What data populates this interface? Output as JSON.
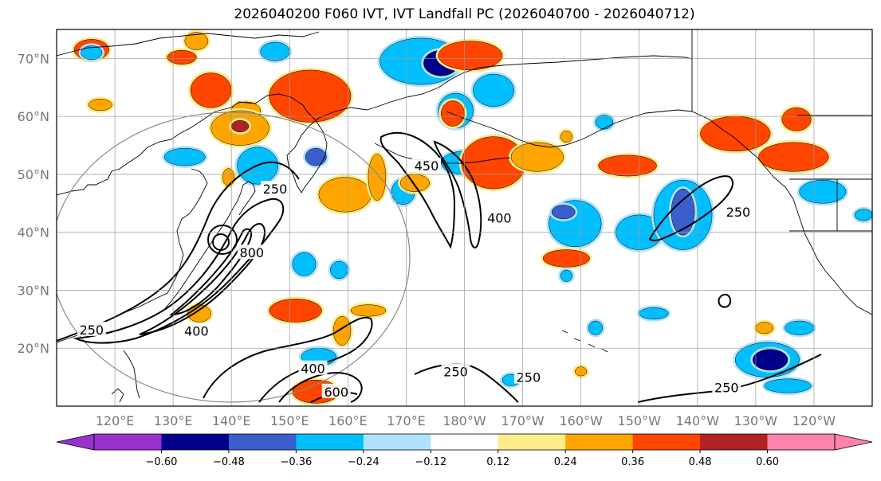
{
  "chart_data": {
    "type": "contour-map",
    "title": "2026040200 F060 IVT, IVT Landfall PC (2026040700 - 2026040712)",
    "map": {
      "lon_range": [
        110,
        250
      ],
      "lat_range": [
        10,
        75
      ],
      "lat_ticks": [
        {
          "lat": 70,
          "label": "70°N"
        },
        {
          "lat": 60,
          "label": "60°N"
        },
        {
          "lat": 50,
          "label": "50°N"
        },
        {
          "lat": 40,
          "label": "40°N"
        },
        {
          "lat": 30,
          "label": "30°N"
        },
        {
          "lat": 20,
          "label": "20°N"
        }
      ],
      "lon_ticks": [
        {
          "lon": 120,
          "label": "120°E"
        },
        {
          "lon": 130,
          "label": "130°E"
        },
        {
          "lon": 140,
          "label": "140°E"
        },
        {
          "lon": 150,
          "label": "150°E"
        },
        {
          "lon": 160,
          "label": "160°E"
        },
        {
          "lon": 170,
          "label": "170°E"
        },
        {
          "lon": 180,
          "label": "180°W"
        },
        {
          "lon": 190,
          "label": "170°W"
        },
        {
          "lon": 200,
          "label": "160°W"
        },
        {
          "lon": 210,
          "label": "150°W"
        },
        {
          "lon": 220,
          "label": "140°W"
        },
        {
          "lon": 230,
          "label": "130°W"
        },
        {
          "lon": 240,
          "label": "120°W"
        }
      ],
      "grid_lons": [
        110,
        120,
        130,
        140,
        150,
        160,
        170,
        180,
        190,
        200,
        210,
        220,
        230,
        240
      ],
      "grid_lats": [
        20,
        30,
        40,
        50,
        60,
        70
      ]
    },
    "colorbar": {
      "orientation": "horizontal",
      "extend": "both",
      "boundaries": [
        -0.72,
        -0.6,
        -0.48,
        -0.36,
        -0.24,
        -0.12,
        0.12,
        0.24,
        0.36,
        0.48,
        0.6,
        0.72
      ],
      "colors": [
        "#9932cc",
        "#00008b",
        "#3a5fcd",
        "#00bfff",
        "#b0e2ff",
        "#ffffff",
        "#ffec8b",
        "#ffa500",
        "#ff4500",
        "#b22222",
        "#ff82ab"
      ],
      "over_color": "#ff82ab",
      "under_color": "#9932cc",
      "tick_labels": [
        "−0.60",
        "−0.48",
        "−0.36",
        "−0.24",
        "−0.12",
        "0.12",
        "0.24",
        "0.36",
        "0.48",
        "0.60"
      ]
    },
    "ivt_contour_labels": [
      {
        "text": "250",
        "lon": 147.5,
        "lat": 47.5
      },
      {
        "text": "250",
        "lon": 116,
        "lat": 23.2
      },
      {
        "text": "400",
        "lon": 134,
        "lat": 23.0
      },
      {
        "text": "800",
        "lon": 143.5,
        "lat": 36.5
      },
      {
        "text": "450",
        "lon": 173.5,
        "lat": 51.5
      },
      {
        "text": "400",
        "lon": 186,
        "lat": 42.5
      },
      {
        "text": "400",
        "lon": 154,
        "lat": 16.5
      },
      {
        "text": "600",
        "lon": 158,
        "lat": 12.5
      },
      {
        "text": "250",
        "lon": 178.5,
        "lat": 16.0
      },
      {
        "text": "250",
        "lon": 191,
        "lat": 15.0
      },
      {
        "text": "250",
        "lon": 227,
        "lat": 43.5
      },
      {
        "text": "250",
        "lon": 225,
        "lat": 13.2
      }
    ],
    "pc_features": [
      {
        "value": 0.4,
        "lon": 116,
        "lat": 71.5,
        "rx": 3.0,
        "ry": 1.8
      },
      {
        "value": -0.3,
        "lon": 116,
        "lat": 71.0,
        "rx": 1.8,
        "ry": 1.2
      },
      {
        "value": 0.3,
        "lon": 134,
        "lat": 73.0,
        "rx": 2.0,
        "ry": 1.5
      },
      {
        "value": -0.3,
        "lon": 147.5,
        "lat": 71.2,
        "rx": 2.5,
        "ry": 1.6
      },
      {
        "value": 0.4,
        "lon": 131.5,
        "lat": 70.2,
        "rx": 2.5,
        "ry": 1.2
      },
      {
        "value": 0.4,
        "lon": 136.5,
        "lat": 64.5,
        "rx": 3.5,
        "ry": 3.0
      },
      {
        "value": 0.4,
        "lon": 153.5,
        "lat": 63.5,
        "rx": 7.0,
        "ry": 4.5
      },
      {
        "value": 0.3,
        "lon": 142.5,
        "lat": 61.0,
        "rx": 2.5,
        "ry": 1.5
      },
      {
        "value": 0.3,
        "lon": 141.5,
        "lat": 58.0,
        "rx": 5.0,
        "ry": 3.0
      },
      {
        "value": 0.5,
        "lon": 141.5,
        "lat": 58.3,
        "rx": 1.5,
        "ry": 1.0
      },
      {
        "value": 0.3,
        "lon": 117.5,
        "lat": 62.0,
        "rx": 2.0,
        "ry": 1.0
      },
      {
        "value": -0.3,
        "lon": 132,
        "lat": 53.0,
        "rx": 3.5,
        "ry": 1.5
      },
      {
        "value": -0.3,
        "lon": 144.5,
        "lat": 51.5,
        "rx": 3.5,
        "ry": 3.2
      },
      {
        "value": -0.4,
        "lon": 154.5,
        "lat": 53.0,
        "rx": 1.8,
        "ry": 1.5
      },
      {
        "value": 0.3,
        "lon": 159.5,
        "lat": 46.5,
        "rx": 4.5,
        "ry": 3.0
      },
      {
        "value": 0.3,
        "lon": 165,
        "lat": 49.5,
        "rx": 1.5,
        "ry": 4.0
      },
      {
        "value": -0.3,
        "lon": 169.5,
        "lat": 47.0,
        "rx": 2.0,
        "ry": 2.2
      },
      {
        "value": 0.3,
        "lon": 171.5,
        "lat": 48.5,
        "rx": 2.5,
        "ry": 1.5
      },
      {
        "value": -0.3,
        "lon": 172.5,
        "lat": 69.5,
        "rx": 7.0,
        "ry": 4.0
      },
      {
        "value": -0.5,
        "lon": 176,
        "lat": 69.2,
        "rx": 3.0,
        "ry": 2.2
      },
      {
        "value": 0.4,
        "lon": 181,
        "lat": 70.5,
        "rx": 5.5,
        "ry": 2.5
      },
      {
        "value": -0.3,
        "lon": 185,
        "lat": 64.5,
        "rx": 3.5,
        "ry": 2.8
      },
      {
        "value": -0.3,
        "lon": 178.5,
        "lat": 61.0,
        "rx": 3.0,
        "ry": 3.0
      },
      {
        "value": 0.4,
        "lon": 178,
        "lat": 60.5,
        "rx": 2.0,
        "ry": 2.2
      },
      {
        "value": -0.3,
        "lon": 180,
        "lat": 52.0,
        "rx": 4.0,
        "ry": 2.0
      },
      {
        "value": 0.4,
        "lon": 185,
        "lat": 52.0,
        "rx": 5.5,
        "ry": 4.5
      },
      {
        "value": 0.3,
        "lon": 192.5,
        "lat": 53.0,
        "rx": 4.5,
        "ry": 2.5
      },
      {
        "value": -0.3,
        "lon": 204,
        "lat": 59.0,
        "rx": 1.5,
        "ry": 1.2
      },
      {
        "value": 0.3,
        "lon": 197.5,
        "lat": 56.5,
        "rx": 1.0,
        "ry": 1.0
      },
      {
        "value": 0.4,
        "lon": 208,
        "lat": 51.5,
        "rx": 5.0,
        "ry": 1.8
      },
      {
        "value": -0.3,
        "lon": 199,
        "lat": 41.5,
        "rx": 4.5,
        "ry": 4.0
      },
      {
        "value": -0.4,
        "lon": 197,
        "lat": 43.5,
        "rx": 2.0,
        "ry": 1.2
      },
      {
        "value": 0.4,
        "lon": 197.5,
        "lat": 35.5,
        "rx": 4.0,
        "ry": 1.5
      },
      {
        "value": -0.3,
        "lon": 210,
        "lat": 40.0,
        "rx": 4.0,
        "ry": 3.0
      },
      {
        "value": -0.3,
        "lon": 217.5,
        "lat": 43.0,
        "rx": 5.0,
        "ry": 6.0
      },
      {
        "value": -0.45,
        "lon": 217.5,
        "lat": 43.5,
        "rx": 2.0,
        "ry": 4.0
      },
      {
        "value": 0.45,
        "lon": 226.5,
        "lat": 57.0,
        "rx": 6.0,
        "ry": 3.0
      },
      {
        "value": 0.4,
        "lon": 237,
        "lat": 59.5,
        "rx": 2.5,
        "ry": 2.0
      },
      {
        "value": 0.4,
        "lon": 236.5,
        "lat": 53.0,
        "rx": 6.0,
        "ry": 2.5
      },
      {
        "value": -0.3,
        "lon": 241.5,
        "lat": 47.0,
        "rx": 4.0,
        "ry": 2.0
      },
      {
        "value": -0.3,
        "lon": 248.5,
        "lat": 43.0,
        "rx": 1.5,
        "ry": 1.0
      },
      {
        "value": -0.3,
        "lon": 152.5,
        "lat": 34.5,
        "rx": 2.0,
        "ry": 2.0
      },
      {
        "value": -0.3,
        "lon": 158.5,
        "lat": 33.5,
        "rx": 1.5,
        "ry": 1.5
      },
      {
        "value": 0.4,
        "lon": 151,
        "lat": 26.5,
        "rx": 4.5,
        "ry": 2.0
      },
      {
        "value": 0.3,
        "lon": 163.5,
        "lat": 26.5,
        "rx": 3.0,
        "ry": 1.0
      },
      {
        "value": 0.3,
        "lon": 159,
        "lat": 23.0,
        "rx": 1.5,
        "ry": 2.5
      },
      {
        "value": -0.3,
        "lon": 155,
        "lat": 18.5,
        "rx": 3.0,
        "ry": 1.5
      },
      {
        "value": 0.4,
        "lon": 154.5,
        "lat": 12.5,
        "rx": 4.0,
        "ry": 2.0
      },
      {
        "value": 0.3,
        "lon": 134.5,
        "lat": 26.0,
        "rx": 2.0,
        "ry": 1.5
      },
      {
        "value": 0.3,
        "lon": 139.5,
        "lat": 49.5,
        "rx": 1.0,
        "ry": 1.5
      },
      {
        "value": -0.3,
        "lon": 212.5,
        "lat": 26.0,
        "rx": 2.5,
        "ry": 1.0
      },
      {
        "value": -0.3,
        "lon": 232,
        "lat": 18.0,
        "rx": 5.5,
        "ry": 3.0
      },
      {
        "value": -0.5,
        "lon": 232.5,
        "lat": 18.0,
        "rx": 3.0,
        "ry": 1.8
      },
      {
        "value": 0.3,
        "lon": 231.5,
        "lat": 23.5,
        "rx": 1.5,
        "ry": 1.0
      },
      {
        "value": -0.3,
        "lon": 237.5,
        "lat": 23.5,
        "rx": 2.5,
        "ry": 1.2
      },
      {
        "value": -0.3,
        "lon": 235.5,
        "lat": 13.5,
        "rx": 4.0,
        "ry": 1.2
      },
      {
        "value": -0.3,
        "lon": 188,
        "lat": 14.5,
        "rx": 1.5,
        "ry": 1.0
      },
      {
        "value": -0.3,
        "lon": 202.5,
        "lat": 23.5,
        "rx": 1.2,
        "ry": 1.2
      },
      {
        "value": -0.3,
        "lon": 197.5,
        "lat": 32.5,
        "rx": 1.0,
        "ry": 1.0
      },
      {
        "value": 0.3,
        "lon": 200,
        "lat": 16.0,
        "rx": 1.0,
        "ry": 0.8
      }
    ],
    "reference_circle": {
      "center_lon": 140,
      "center_lat": 40,
      "radius_deg": 30
    }
  }
}
